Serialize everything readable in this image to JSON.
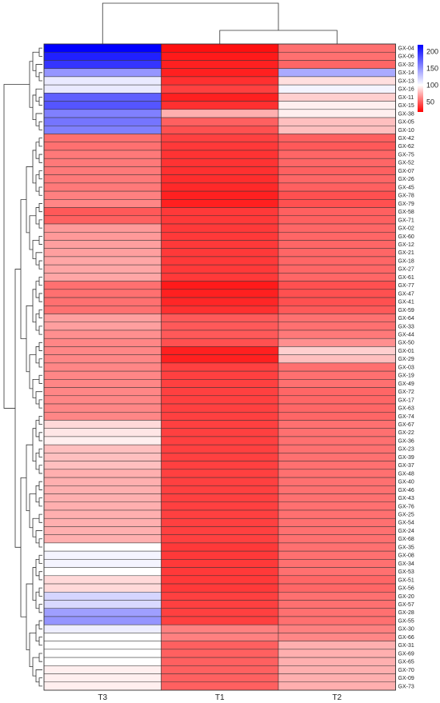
{
  "chart_data": {
    "type": "heatmap",
    "columns": [
      "T3",
      "T1",
      "T2"
    ],
    "rows": [
      "GX-04",
      "GX-06",
      "GX-32",
      "GX-14",
      "GX-13",
      "GX-16",
      "GX-11",
      "GX-15",
      "GX-38",
      "GX-05",
      "GX-10",
      "GX-42",
      "GX-62",
      "GX-75",
      "GX-52",
      "GX-07",
      "GX-26",
      "GX-45",
      "GX-78",
      "GX-79",
      "GX-58",
      "GX-71",
      "GX-02",
      "GX-60",
      "GX-12",
      "GX-21",
      "GX-18",
      "GX-27",
      "GX-61",
      "GX-77",
      "GX-47",
      "GX-41",
      "GX-59",
      "GX-64",
      "GX-33",
      "GX-44",
      "GX-50",
      "GX-01",
      "GX-29",
      "GX-03",
      "GX-19",
      "GX-49",
      "GX-72",
      "GX-17",
      "GX-63",
      "GX-74",
      "GX-67",
      "GX-22",
      "GX-36",
      "GX-23",
      "GX-39",
      "GX-37",
      "GX-48",
      "GX-40",
      "GX-46",
      "GX-43",
      "GX-76",
      "GX-25",
      "GX-54",
      "GX-24",
      "GX-68",
      "GX-35",
      "GX-08",
      "GX-34",
      "GX-53",
      "GX-51",
      "GX-56",
      "GX-20",
      "GX-57",
      "GX-28",
      "GX-55",
      "GX-30",
      "GX-66",
      "GX-31",
      "GX-69",
      "GX-65",
      "GX-70",
      "GX-09",
      "GX-73"
    ],
    "values": [
      [
        220,
        25,
        55
      ],
      [
        205,
        28,
        55
      ],
      [
        195,
        30,
        52
      ],
      [
        150,
        30,
        140
      ],
      [
        110,
        35,
        90
      ],
      [
        110,
        40,
        105
      ],
      [
        175,
        30,
        85
      ],
      [
        180,
        35,
        95
      ],
      [
        160,
        75,
        95
      ],
      [
        165,
        50,
        80
      ],
      [
        160,
        45,
        80
      ],
      [
        55,
        40,
        50
      ],
      [
        55,
        38,
        48
      ],
      [
        58,
        36,
        52
      ],
      [
        58,
        36,
        52
      ],
      [
        58,
        35,
        50
      ],
      [
        58,
        34,
        52
      ],
      [
        58,
        33,
        50
      ],
      [
        60,
        30,
        45
      ],
      [
        62,
        30,
        45
      ],
      [
        48,
        38,
        50
      ],
      [
        50,
        38,
        50
      ],
      [
        68,
        38,
        52
      ],
      [
        68,
        38,
        52
      ],
      [
        70,
        38,
        52
      ],
      [
        70,
        38,
        52
      ],
      [
        72,
        38,
        52
      ],
      [
        72,
        38,
        52
      ],
      [
        72,
        38,
        52
      ],
      [
        55,
        28,
        45
      ],
      [
        55,
        30,
        45
      ],
      [
        55,
        32,
        45
      ],
      [
        55,
        35,
        48
      ],
      [
        70,
        48,
        55
      ],
      [
        70,
        48,
        55
      ],
      [
        65,
        48,
        58
      ],
      [
        62,
        45,
        65
      ],
      [
        62,
        30,
        85
      ],
      [
        62,
        30,
        80
      ],
      [
        62,
        40,
        55
      ],
      [
        62,
        40,
        55
      ],
      [
        62,
        40,
        55
      ],
      [
        62,
        40,
        52
      ],
      [
        62,
        40,
        52
      ],
      [
        62,
        40,
        52
      ],
      [
        62,
        40,
        52
      ],
      [
        88,
        40,
        55
      ],
      [
        92,
        40,
        55
      ],
      [
        95,
        40,
        55
      ],
      [
        80,
        40,
        55
      ],
      [
        80,
        40,
        55
      ],
      [
        80,
        40,
        55
      ],
      [
        75,
        40,
        55
      ],
      [
        75,
        40,
        55
      ],
      [
        75,
        40,
        55
      ],
      [
        75,
        40,
        55
      ],
      [
        75,
        40,
        55
      ],
      [
        75,
        40,
        55
      ],
      [
        75,
        40,
        55
      ],
      [
        75,
        40,
        55
      ],
      [
        75,
        40,
        55
      ],
      [
        100,
        38,
        55
      ],
      [
        105,
        38,
        55
      ],
      [
        105,
        38,
        55
      ],
      [
        100,
        38,
        55
      ],
      [
        88,
        38,
        52
      ],
      [
        88,
        38,
        52
      ],
      [
        120,
        40,
        55
      ],
      [
        118,
        40,
        55
      ],
      [
        145,
        40,
        55
      ],
      [
        150,
        40,
        55
      ],
      [
        108,
        60,
        60
      ],
      [
        100,
        60,
        62
      ],
      [
        100,
        50,
        75
      ],
      [
        100,
        50,
        75
      ],
      [
        100,
        50,
        75
      ],
      [
        95,
        50,
        75
      ],
      [
        95,
        50,
        75
      ],
      [
        95,
        50,
        75
      ]
    ],
    "scale": {
      "min": 20,
      "max": 220,
      "mid": 100,
      "low_color": "#ff0000",
      "mid_color": "#ffffff",
      "high_color": "#0000ff",
      "ticks": [
        200,
        150,
        100,
        50
      ]
    },
    "column_dendrogram": true,
    "row_dendrogram": true
  }
}
